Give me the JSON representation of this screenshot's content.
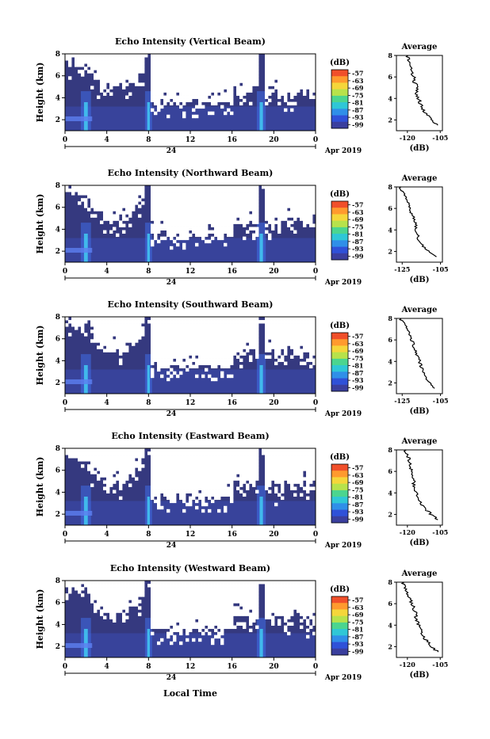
{
  "page": {
    "x_axis_label": "Local Time"
  },
  "colorbar": {
    "unit": "(dB)",
    "ticks": [
      "-57",
      "-63",
      "-69",
      "-75",
      "-81",
      "-87",
      "-93",
      "-99"
    ],
    "colors": [
      "#f04f2a",
      "#ff9a2e",
      "#f5d63a",
      "#b7e24b",
      "#4bd58f",
      "#2fc7d6",
      "#2f8fe8",
      "#2f51d8",
      "#3a3f9e"
    ]
  },
  "chart_data": [
    {
      "type": "heatmap",
      "title": "Echo Intensity (Vertical Beam)",
      "ylabel": "Height (km)",
      "yticks": [
        "2",
        "4",
        "6",
        "8"
      ],
      "xticks": [
        "0",
        "4",
        "8",
        "12",
        "16",
        "20",
        "0"
      ],
      "date_tick": "24",
      "date_label": "Apr 2019",
      "xlim": [
        0,
        24
      ],
      "ylim": [
        1,
        8
      ],
      "profile": {
        "title": "Average",
        "xlabel": "(dB)",
        "xticks": [
          "-120",
          "-105"
        ],
        "yticks": [
          "2",
          "4",
          "6",
          "8"
        ],
        "xlim": [
          -125,
          -104
        ],
        "height": [
          1.5,
          2.0,
          2.5,
          3.0,
          3.5,
          4.0,
          4.5,
          5.0,
          5.5,
          6.0,
          6.5,
          7.0,
          7.5,
          8.0
        ],
        "value": [
          -106,
          -109,
          -111,
          -113,
          -114,
          -115,
          -116,
          -115,
          -117,
          -117,
          -118,
          -118,
          -119,
          -120
        ]
      }
    },
    {
      "type": "heatmap",
      "title": "Echo Intensity (Northward Beam)",
      "ylabel": "Height (km)",
      "yticks": [
        "2",
        "4",
        "6",
        "8"
      ],
      "xticks": [
        "0",
        "4",
        "8",
        "12",
        "16",
        "20",
        "0"
      ],
      "date_tick": "24",
      "date_label": "Apr 2019",
      "xlim": [
        0,
        24
      ],
      "ylim": [
        1,
        8
      ],
      "profile": {
        "title": "Average",
        "xlabel": "(dB)",
        "xticks": [
          "-125",
          "-105"
        ],
        "yticks": [
          "2",
          "4",
          "6",
          "8"
        ],
        "xlim": [
          -128,
          -104
        ],
        "height": [
          1.5,
          2.0,
          2.5,
          3.0,
          3.5,
          4.0,
          4.5,
          5.0,
          5.5,
          6.0,
          6.5,
          7.0,
          7.5,
          8.0
        ],
        "value": [
          -107,
          -111,
          -114,
          -116,
          -117,
          -118,
          -118,
          -119,
          -120,
          -121,
          -122,
          -123,
          -125,
          -126
        ]
      }
    },
    {
      "type": "heatmap",
      "title": "Echo Intensity (Southward Beam)",
      "ylabel": "Height (km)",
      "yticks": [
        "2",
        "4",
        "6",
        "8"
      ],
      "xticks": [
        "0",
        "4",
        "8",
        "12",
        "16",
        "20",
        "0"
      ],
      "date_tick": "24",
      "date_label": "Apr 2019",
      "xlim": [
        0,
        24
      ],
      "ylim": [
        1,
        8
      ],
      "profile": {
        "title": "Average",
        "xlabel": "(dB)",
        "xticks": [
          "-125",
          "-105"
        ],
        "yticks": [
          "2",
          "4",
          "6",
          "8"
        ],
        "xlim": [
          -128,
          -104
        ],
        "height": [
          1.5,
          2.0,
          2.5,
          3.0,
          3.5,
          4.0,
          4.5,
          5.0,
          5.5,
          6.0,
          6.5,
          7.0,
          7.5,
          8.0
        ],
        "value": [
          -108,
          -111,
          -113,
          -114,
          -115,
          -116,
          -117,
          -118,
          -119,
          -120,
          -121,
          -122,
          -124,
          -126
        ]
      }
    },
    {
      "type": "heatmap",
      "title": "Echo Intensity (Eastward Beam)",
      "ylabel": "Height (km)",
      "yticks": [
        "2",
        "4",
        "6",
        "8"
      ],
      "xticks": [
        "0",
        "4",
        "8",
        "12",
        "16",
        "20",
        "0"
      ],
      "date_tick": "24",
      "date_label": "Apr 2019",
      "xlim": [
        0,
        24
      ],
      "ylim": [
        1,
        8
      ],
      "profile": {
        "title": "Average",
        "xlabel": "(dB)",
        "xticks": [
          "-120",
          "-105"
        ],
        "yticks": [
          "2",
          "4",
          "6",
          "8"
        ],
        "xlim": [
          -125,
          -104
        ],
        "height": [
          1.5,
          2.0,
          2.5,
          3.0,
          3.5,
          4.0,
          4.5,
          5.0,
          5.5,
          6.0,
          6.5,
          7.0,
          7.5,
          8.0
        ],
        "value": [
          -106,
          -109,
          -112,
          -114,
          -115,
          -116,
          -117,
          -117,
          -118,
          -118,
          -119,
          -119,
          -120,
          -121
        ]
      }
    },
    {
      "type": "heatmap",
      "title": "Echo Intensity (Westward Beam)",
      "ylabel": "Height (km)",
      "yticks": [
        "2",
        "4",
        "6",
        "8"
      ],
      "xticks": [
        "0",
        "4",
        "8",
        "12",
        "16",
        "20",
        "0"
      ],
      "date_tick": "24",
      "date_label": "Apr 2019",
      "xlim": [
        0,
        24
      ],
      "ylim": [
        1,
        8
      ],
      "profile": {
        "title": "Average",
        "xlabel": "(dB)",
        "xticks": [
          "-120",
          "-105"
        ],
        "yticks": [
          "2",
          "4",
          "6",
          "8"
        ],
        "xlim": [
          -125,
          -104
        ],
        "height": [
          1.5,
          2.0,
          2.5,
          3.0,
          3.5,
          4.0,
          4.5,
          5.0,
          5.5,
          6.0,
          6.5,
          7.0,
          7.5,
          8.0
        ],
        "value": [
          -106,
          -109,
          -111,
          -113,
          -114,
          -115,
          -116,
          -116,
          -117,
          -118,
          -119,
          -120,
          -121,
          -122
        ]
      }
    }
  ]
}
